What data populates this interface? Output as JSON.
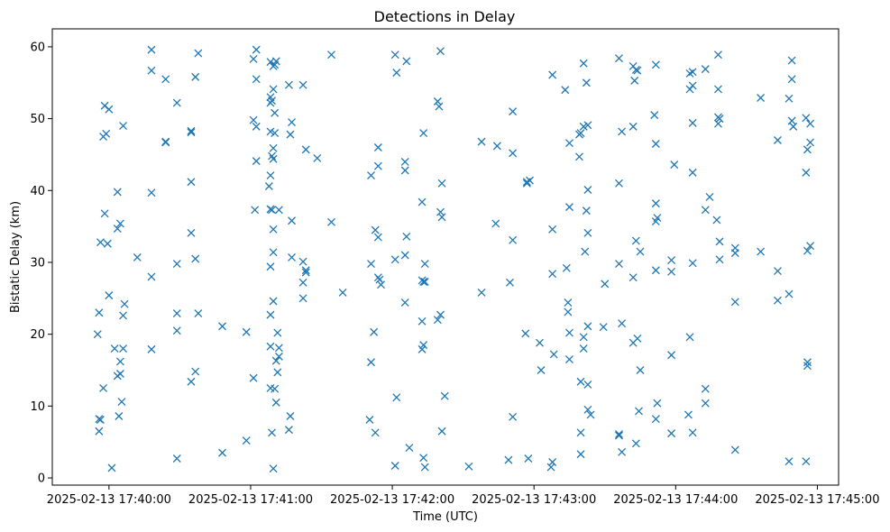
{
  "chart_data": {
    "type": "scatter",
    "title": "Detections in Delay",
    "xlabel": "Time (UTC)",
    "ylabel": "Bistatic Delay (km)",
    "marker": "x",
    "color": "#1f77b4",
    "xlim": [
      -0.4,
      5.15
    ],
    "ylim": [
      -1,
      62.5
    ],
    "x_unit": "minutes after 2025-02-13 17:40:00",
    "xticks": [
      {
        "value": 0,
        "label": "2025-02-13 17:40:00"
      },
      {
        "value": 1,
        "label": "2025-02-13 17:41:00"
      },
      {
        "value": 2,
        "label": "2025-02-13 17:42:00"
      },
      {
        "value": 3,
        "label": "2025-02-13 17:43:00"
      },
      {
        "value": 4,
        "label": "2025-02-13 17:44:00"
      },
      {
        "value": 5,
        "label": "2025-02-13 17:45:00"
      }
    ],
    "yticks": [
      {
        "value": 0,
        "label": "0"
      },
      {
        "value": 10,
        "label": "10"
      },
      {
        "value": 20,
        "label": "20"
      },
      {
        "value": 30,
        "label": "30"
      },
      {
        "value": 40,
        "label": "40"
      },
      {
        "value": 50,
        "label": "50"
      },
      {
        "value": 60,
        "label": "60"
      }
    ],
    "points": [
      [
        -0.03,
        51.8
      ],
      [
        -0.02,
        47.9
      ],
      [
        -0.04,
        47.5
      ],
      [
        0.0,
        51.3
      ],
      [
        0.1,
        49.0
      ],
      [
        0.06,
        39.8
      ],
      [
        -0.03,
        36.8
      ],
      [
        -0.06,
        32.8
      ],
      [
        -0.01,
        32.6
      ],
      [
        0.08,
        35.4
      ],
      [
        0.06,
        34.7
      ],
      [
        0.0,
        25.4
      ],
      [
        0.11,
        24.2
      ],
      [
        0.1,
        22.6
      ],
      [
        -0.07,
        23.0
      ],
      [
        -0.08,
        20.0
      ],
      [
        0.04,
        18.0
      ],
      [
        0.1,
        18.0
      ],
      [
        0.08,
        14.5
      ],
      [
        0.06,
        14.2
      ],
      [
        0.08,
        16.2
      ],
      [
        -0.04,
        12.5
      ],
      [
        0.09,
        10.6
      ],
      [
        0.07,
        8.6
      ],
      [
        -0.07,
        8.2
      ],
      [
        -0.06,
        8.1
      ],
      [
        -0.07,
        6.5
      ],
      [
        0.02,
        1.4
      ],
      [
        0.2,
        30.7
      ],
      [
        0.3,
        59.6
      ],
      [
        0.3,
        56.7
      ],
      [
        0.4,
        55.5
      ],
      [
        0.4,
        46.7
      ],
      [
        0.4,
        46.8
      ],
      [
        0.3,
        39.7
      ],
      [
        0.3,
        28.0
      ],
      [
        0.3,
        17.9
      ],
      [
        0.48,
        52.2
      ],
      [
        0.48,
        29.8
      ],
      [
        0.48,
        22.9
      ],
      [
        0.48,
        20.5
      ],
      [
        0.48,
        2.7
      ],
      [
        0.58,
        48.1
      ],
      [
        0.58,
        48.3
      ],
      [
        0.61,
        55.8
      ],
      [
        0.63,
        59.1
      ],
      [
        0.58,
        41.2
      ],
      [
        0.58,
        34.1
      ],
      [
        0.61,
        30.5
      ],
      [
        0.63,
        22.9
      ],
      [
        0.61,
        14.8
      ],
      [
        0.58,
        13.4
      ],
      [
        0.8,
        21.1
      ],
      [
        0.8,
        3.5
      ],
      [
        0.97,
        20.3
      ],
      [
        0.97,
        5.2
      ],
      [
        1.04,
        59.6
      ],
      [
        1.02,
        58.3
      ],
      [
        1.04,
        55.5
      ],
      [
        1.02,
        49.8
      ],
      [
        1.04,
        48.9
      ],
      [
        1.04,
        44.1
      ],
      [
        1.03,
        37.3
      ],
      [
        1.02,
        13.9
      ],
      [
        1.14,
        57.9
      ],
      [
        1.16,
        57.3
      ],
      [
        1.17,
        57.5
      ],
      [
        1.18,
        58.0
      ],
      [
        1.16,
        54.1
      ],
      [
        1.14,
        53.0
      ],
      [
        1.15,
        52.5
      ],
      [
        1.14,
        52.2
      ],
      [
        1.17,
        50.8
      ],
      [
        1.14,
        48.2
      ],
      [
        1.17,
        48.0
      ],
      [
        1.16,
        45.9
      ],
      [
        1.15,
        44.8
      ],
      [
        1.16,
        44.4
      ],
      [
        1.14,
        42.1
      ],
      [
        1.13,
        40.6
      ],
      [
        1.14,
        37.4
      ],
      [
        1.15,
        37.3
      ],
      [
        1.2,
        37.3
      ],
      [
        1.16,
        34.6
      ],
      [
        1.16,
        31.4
      ],
      [
        1.14,
        29.4
      ],
      [
        1.16,
        24.6
      ],
      [
        1.14,
        22.7
      ],
      [
        1.19,
        20.2
      ],
      [
        1.14,
        18.3
      ],
      [
        1.2,
        18.1
      ],
      [
        1.2,
        16.9
      ],
      [
        1.18,
        16.3
      ],
      [
        1.19,
        14.7
      ],
      [
        1.14,
        12.5
      ],
      [
        1.17,
        12.4
      ],
      [
        1.18,
        10.5
      ],
      [
        1.15,
        6.3
      ],
      [
        1.16,
        1.3
      ],
      [
        1.27,
        54.7
      ],
      [
        1.29,
        49.5
      ],
      [
        1.28,
        47.8
      ],
      [
        1.29,
        35.8
      ],
      [
        1.29,
        30.7
      ],
      [
        1.28,
        8.6
      ],
      [
        1.27,
        6.7
      ],
      [
        1.37,
        54.7
      ],
      [
        1.39,
        45.7
      ],
      [
        1.37,
        30.1
      ],
      [
        1.39,
        28.9
      ],
      [
        1.39,
        28.6
      ],
      [
        1.37,
        27.2
      ],
      [
        1.37,
        25.0
      ],
      [
        1.47,
        44.5
      ],
      [
        1.57,
        58.9
      ],
      [
        1.57,
        35.6
      ],
      [
        1.65,
        25.8
      ],
      [
        1.85,
        42.1
      ],
      [
        1.9,
        46.0
      ],
      [
        1.9,
        43.4
      ],
      [
        1.88,
        34.5
      ],
      [
        1.9,
        33.5
      ],
      [
        1.85,
        29.8
      ],
      [
        1.9,
        27.9
      ],
      [
        1.91,
        27.6
      ],
      [
        1.92,
        26.9
      ],
      [
        1.87,
        20.3
      ],
      [
        1.85,
        16.1
      ],
      [
        1.84,
        8.1
      ],
      [
        1.88,
        6.3
      ],
      [
        2.02,
        58.9
      ],
      [
        2.03,
        56.4
      ],
      [
        2.1,
        58.0
      ],
      [
        2.09,
        44.0
      ],
      [
        2.09,
        42.8
      ],
      [
        2.1,
        33.6
      ],
      [
        2.02,
        30.4
      ],
      [
        2.09,
        31.0
      ],
      [
        2.09,
        24.4
      ],
      [
        2.03,
        11.2
      ],
      [
        2.02,
        1.7
      ],
      [
        2.12,
        4.2
      ],
      [
        2.22,
        48.0
      ],
      [
        2.21,
        38.4
      ],
      [
        2.23,
        29.8
      ],
      [
        2.21,
        27.5
      ],
      [
        2.22,
        27.3
      ],
      [
        2.23,
        27.3
      ],
      [
        2.21,
        21.8
      ],
      [
        2.22,
        18.5
      ],
      [
        2.21,
        17.9
      ],
      [
        2.22,
        2.8
      ],
      [
        2.23,
        1.5
      ],
      [
        2.34,
        59.4
      ],
      [
        2.32,
        52.4
      ],
      [
        2.33,
        51.7
      ],
      [
        2.35,
        41.0
      ],
      [
        2.34,
        37.0
      ],
      [
        2.35,
        36.3
      ],
      [
        2.34,
        22.7
      ],
      [
        2.32,
        22.0
      ],
      [
        2.37,
        11.4
      ],
      [
        2.35,
        6.5
      ],
      [
        2.54,
        1.6
      ],
      [
        2.63,
        25.8
      ],
      [
        2.63,
        46.8
      ],
      [
        2.73,
        35.4
      ],
      [
        2.74,
        46.2
      ],
      [
        2.85,
        51.0
      ],
      [
        2.85,
        45.2
      ],
      [
        2.85,
        33.1
      ],
      [
        2.83,
        27.2
      ],
      [
        2.85,
        8.5
      ],
      [
        2.82,
        2.5
      ],
      [
        2.95,
        41.0
      ],
      [
        2.95,
        41.2
      ],
      [
        2.97,
        41.4
      ],
      [
        2.94,
        20.1
      ],
      [
        2.96,
        2.7
      ],
      [
        3.04,
        18.8
      ],
      [
        3.05,
        15.0
      ],
      [
        3.13,
        56.1
      ],
      [
        3.13,
        34.6
      ],
      [
        3.13,
        28.4
      ],
      [
        3.14,
        17.2
      ],
      [
        3.13,
        2.2
      ],
      [
        3.12,
        1.5
      ],
      [
        3.22,
        54.0
      ],
      [
        3.25,
        46.6
      ],
      [
        3.25,
        37.7
      ],
      [
        3.23,
        29.2
      ],
      [
        3.24,
        24.4
      ],
      [
        3.24,
        23.1
      ],
      [
        3.25,
        20.2
      ],
      [
        3.25,
        16.5
      ],
      [
        3.32,
        44.7
      ],
      [
        3.32,
        47.8
      ],
      [
        3.33,
        48.0
      ],
      [
        3.35,
        48.9
      ],
      [
        3.35,
        57.7
      ],
      [
        3.37,
        55.0
      ],
      [
        3.38,
        49.1
      ],
      [
        3.37,
        37.2
      ],
      [
        3.38,
        40.1
      ],
      [
        3.38,
        34.1
      ],
      [
        3.36,
        31.5
      ],
      [
        3.38,
        21.1
      ],
      [
        3.35,
        19.6
      ],
      [
        3.35,
        18.0
      ],
      [
        3.33,
        13.4
      ],
      [
        3.38,
        13.0
      ],
      [
        3.38,
        9.5
      ],
      [
        3.4,
        8.8
      ],
      [
        3.33,
        6.3
      ],
      [
        3.33,
        3.3
      ],
      [
        3.5,
        27.0
      ],
      [
        3.49,
        21.0
      ],
      [
        3.6,
        58.4
      ],
      [
        3.6,
        41.0
      ],
      [
        3.62,
        48.2
      ],
      [
        3.6,
        29.8
      ],
      [
        3.62,
        21.5
      ],
      [
        3.6,
        6.1
      ],
      [
        3.6,
        5.9
      ],
      [
        3.62,
        3.6
      ],
      [
        3.7,
        57.3
      ],
      [
        3.71,
        55.3
      ],
      [
        3.72,
        56.8
      ],
      [
        3.73,
        56.7
      ],
      [
        3.7,
        48.9
      ],
      [
        3.72,
        33.0
      ],
      [
        3.75,
        31.5
      ],
      [
        3.7,
        27.9
      ],
      [
        3.7,
        18.8
      ],
      [
        3.73,
        19.4
      ],
      [
        3.75,
        15.0
      ],
      [
        3.74,
        9.3
      ],
      [
        3.72,
        4.8
      ],
      [
        3.86,
        57.5
      ],
      [
        3.85,
        50.5
      ],
      [
        3.86,
        46.5
      ],
      [
        3.86,
        38.2
      ],
      [
        3.87,
        36.2
      ],
      [
        3.86,
        35.7
      ],
      [
        3.86,
        28.9
      ],
      [
        3.87,
        10.4
      ],
      [
        3.86,
        8.2
      ],
      [
        3.99,
        43.6
      ],
      [
        3.97,
        30.3
      ],
      [
        3.97,
        28.7
      ],
      [
        3.97,
        17.1
      ],
      [
        3.97,
        6.2
      ],
      [
        4.1,
        56.3
      ],
      [
        4.12,
        56.5
      ],
      [
        4.1,
        54.1
      ],
      [
        4.12,
        54.6
      ],
      [
        4.12,
        49.4
      ],
      [
        4.12,
        42.5
      ],
      [
        4.12,
        29.9
      ],
      [
        4.1,
        19.6
      ],
      [
        4.09,
        8.8
      ],
      [
        4.12,
        6.3
      ],
      [
        4.21,
        56.9
      ],
      [
        4.21,
        37.3
      ],
      [
        4.21,
        12.4
      ],
      [
        4.21,
        10.4
      ],
      [
        4.3,
        58.9
      ],
      [
        4.3,
        54.1
      ],
      [
        4.3,
        50.2
      ],
      [
        4.31,
        50.0
      ],
      [
        4.3,
        49.3
      ],
      [
        4.29,
        35.9
      ],
      [
        4.31,
        32.9
      ],
      [
        4.31,
        30.4
      ],
      [
        4.24,
        39.1
      ],
      [
        4.42,
        32.0
      ],
      [
        4.42,
        31.3
      ],
      [
        4.42,
        24.5
      ],
      [
        4.42,
        3.9
      ],
      [
        4.6,
        52.9
      ],
      [
        4.6,
        31.5
      ],
      [
        4.72,
        47.0
      ],
      [
        4.72,
        28.8
      ],
      [
        4.72,
        24.7
      ],
      [
        4.82,
        58.1
      ],
      [
        4.82,
        55.5
      ],
      [
        4.8,
        52.8
      ],
      [
        4.82,
        49.7
      ],
      [
        4.83,
        48.9
      ],
      [
        4.8,
        25.6
      ],
      [
        4.8,
        2.3
      ],
      [
        4.92,
        50.1
      ],
      [
        4.95,
        49.3
      ],
      [
        4.95,
        46.7
      ],
      [
        4.93,
        45.7
      ],
      [
        4.92,
        42.5
      ],
      [
        4.95,
        32.3
      ],
      [
        4.93,
        31.6
      ],
      [
        4.93,
        16.1
      ],
      [
        4.93,
        15.6
      ],
      [
        4.92,
        2.3
      ]
    ]
  }
}
